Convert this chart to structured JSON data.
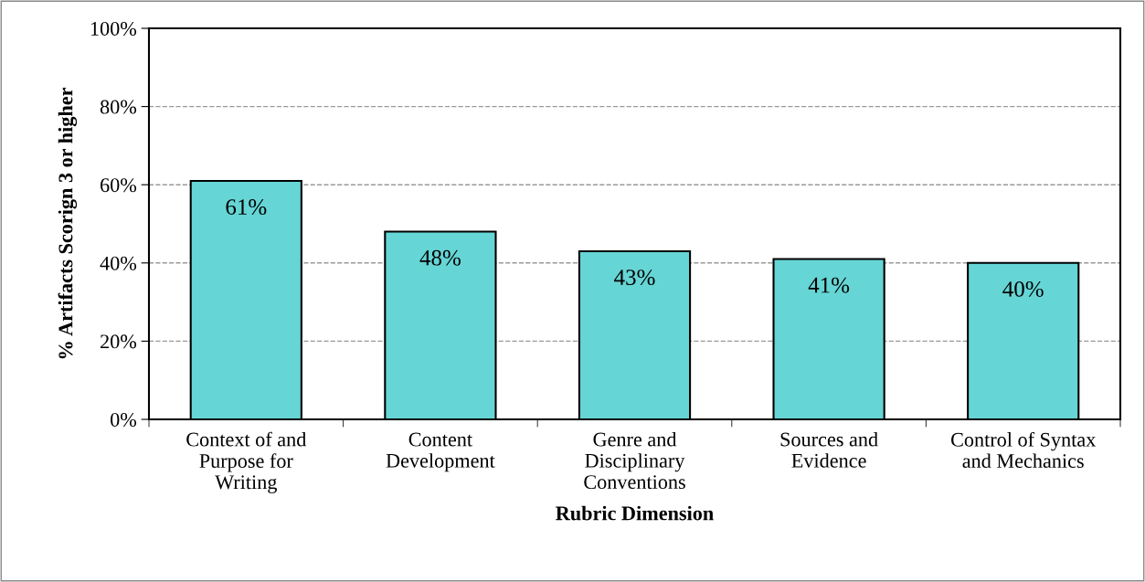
{
  "chart_data": {
    "type": "bar",
    "xlabel": "Rubric Dimension",
    "ylabel": "% Artifacts Scorign 3 or higher",
    "categories": [
      "Context of and\nPurpose for\nWriting",
      "Content\nDevelopment",
      "Genre and\nDisciplinary\nConventions",
      "Sources and\nEvidence",
      "Control of Syntax\nand Mechanics"
    ],
    "values": [
      61,
      48,
      43,
      41,
      40
    ],
    "color": "#66d5d5",
    "value_labels": [
      "61%",
      "48%",
      "43%",
      "41%",
      "40%"
    ],
    "ylim": [
      0,
      100
    ],
    "yticks": [
      {
        "value": 0,
        "label": "0%"
      },
      {
        "value": 20,
        "label": "20%"
      },
      {
        "value": 40,
        "label": "40%"
      },
      {
        "value": 60,
        "label": "60%"
      },
      {
        "value": 80,
        "label": "80%"
      },
      {
        "value": 100,
        "label": "100%"
      }
    ],
    "grid": "y"
  }
}
